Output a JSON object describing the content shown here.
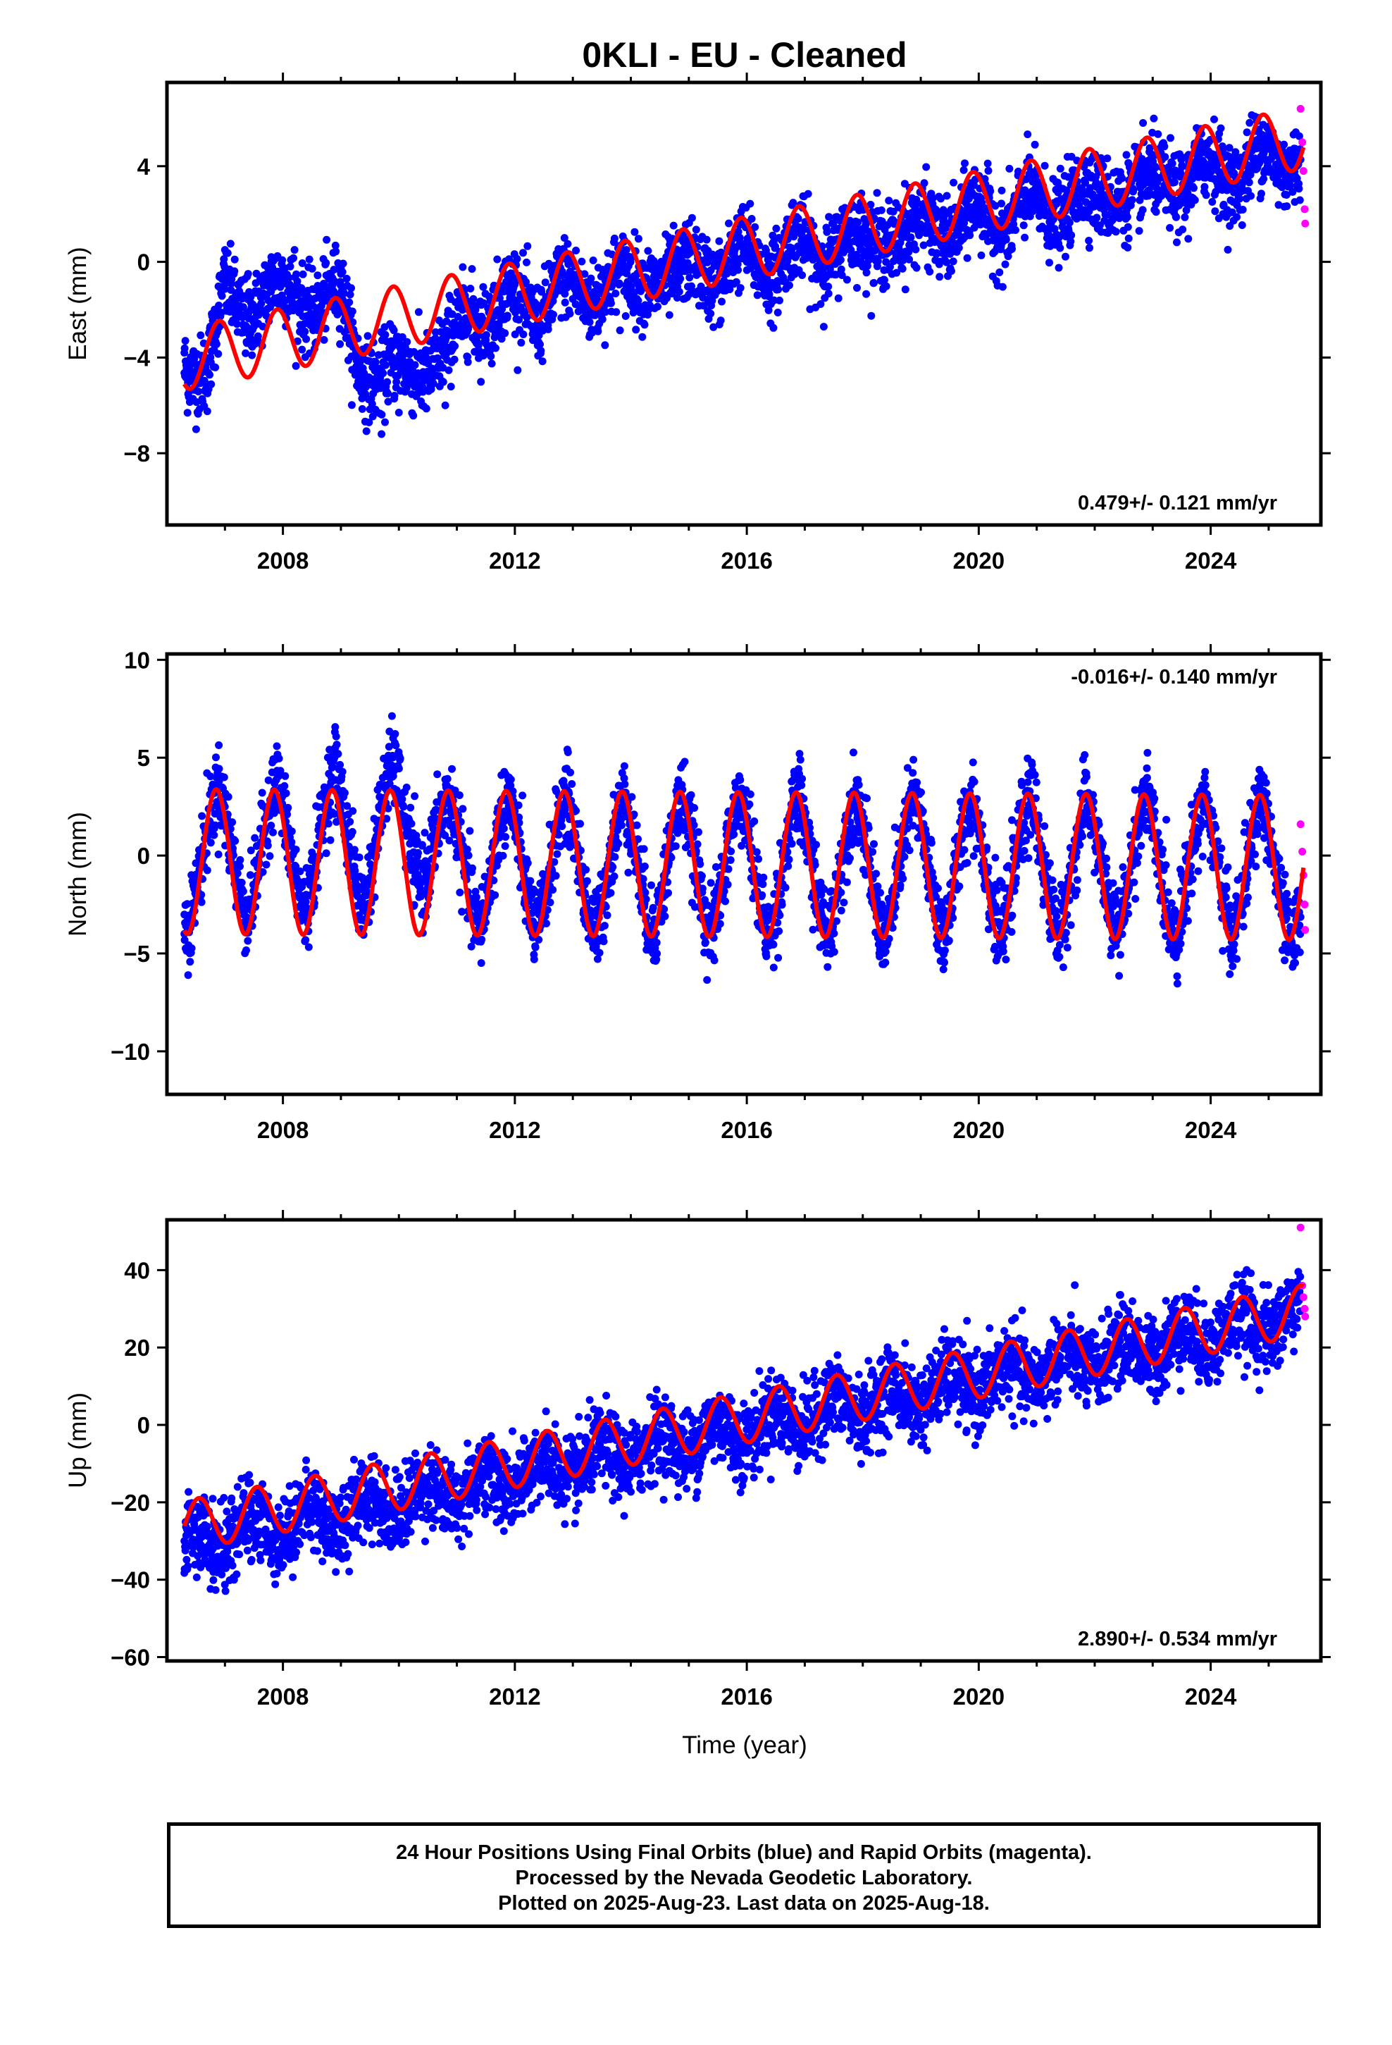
{
  "title": "0KLI  - EU - Cleaned",
  "x_axis_label": "Time (year)",
  "caption": [
    "24 Hour Positions Using Final Orbits (blue) and Rapid Orbits (magenta).",
    "Processed by the Nevada Geodetic Laboratory.",
    "Plotted on 2025-Aug-23. Last data on 2025-Aug-18."
  ],
  "colors": {
    "final": "#0000ff",
    "rapid": "#ff00ff",
    "model": "#ff0000",
    "frame": "#000000"
  },
  "chart_data": [
    {
      "type": "scatter",
      "ylabel": "East (mm)",
      "rate_label": "0.479+/- 0.121 mm/yr",
      "xlim": [
        2006.0,
        2025.9
      ],
      "ylim": [
        -11.0,
        7.5
      ],
      "xticks": [
        2008,
        2012,
        2016,
        2020,
        2024
      ],
      "yticks": [
        4,
        0,
        -4,
        -8
      ],
      "ytick_labels": [
        "4",
        "0",
        "−4",
        "−8"
      ],
      "final_orbits": [
        [
          2006.3,
          -3.8
        ],
        [
          2006.7,
          -5.5
        ],
        [
          2007.0,
          0.5
        ],
        [
          2007.4,
          -0.5
        ],
        [
          2007.8,
          0.2
        ],
        [
          2008.2,
          0.5
        ],
        [
          2008.6,
          -1.0
        ],
        [
          2009.0,
          -0.5
        ],
        [
          2009.3,
          -5.0
        ],
        [
          2009.7,
          -7.2
        ],
        [
          2010.0,
          -6.3
        ],
        [
          2010.4,
          -6.0
        ],
        [
          2010.8,
          -6.0
        ],
        [
          2011.2,
          -2.0
        ],
        [
          2011.6,
          -2.8
        ],
        [
          2012.0,
          -1.6
        ],
        [
          2012.4,
          -2.6
        ],
        [
          2012.8,
          -1.2
        ],
        [
          2013.2,
          -2.0
        ],
        [
          2013.6,
          -0.8
        ],
        [
          2014.0,
          -1.8
        ],
        [
          2014.4,
          -0.6
        ],
        [
          2014.8,
          -1.5
        ],
        [
          2015.2,
          -0.3
        ],
        [
          2015.6,
          -1.2
        ],
        [
          2016.0,
          0.0
        ],
        [
          2016.4,
          -0.9
        ],
        [
          2016.8,
          0.3
        ],
        [
          2017.2,
          -0.6
        ],
        [
          2017.6,
          0.6
        ],
        [
          2018.0,
          -0.2
        ],
        [
          2018.4,
          1.0
        ],
        [
          2018.8,
          0.1
        ],
        [
          2019.2,
          1.3
        ],
        [
          2019.6,
          0.5
        ],
        [
          2020.0,
          1.6
        ],
        [
          2020.4,
          0.8
        ],
        [
          2020.8,
          1.9
        ],
        [
          2021.2,
          1.2
        ],
        [
          2021.6,
          2.3
        ],
        [
          2022.0,
          1.6
        ],
        [
          2022.4,
          2.7
        ],
        [
          2022.8,
          2.0
        ],
        [
          2023.2,
          3.2
        ],
        [
          2023.6,
          2.4
        ],
        [
          2024.0,
          3.5
        ],
        [
          2024.4,
          2.9
        ],
        [
          2024.8,
          3.9
        ],
        [
          2025.2,
          3.2
        ],
        [
          2025.5,
          4.2
        ]
      ],
      "rapid_orbits": [
        [
          2025.55,
          6.4
        ],
        [
          2025.58,
          5.0
        ],
        [
          2025.6,
          3.8
        ],
        [
          2025.62,
          2.2
        ],
        [
          2025.63,
          1.6
        ]
      ],
      "model": {
        "intercept_2006": -4.2,
        "rate_mm_per_yr": 0.479,
        "annual_amplitude": 1.3,
        "annual_phase_year": 2006.9,
        "segments_until": 2011.0,
        "early_offset": 0.0
      }
    },
    {
      "type": "scatter",
      "ylabel": "North (mm)",
      "rate_label": "-0.016+/- 0.140 mm/yr",
      "xlim": [
        2006.0,
        2025.9
      ],
      "ylim": [
        -12.2,
        10.3
      ],
      "xticks": [
        2008,
        2012,
        2016,
        2020,
        2024
      ],
      "yticks": [
        10,
        5,
        0,
        -5,
        -10
      ],
      "ytick_labels": [
        "10",
        "5",
        "0",
        "−5",
        "−10"
      ],
      "final_orbits": [
        [
          2006.3,
          -4.0
        ],
        [
          2006.9,
          3.8
        ],
        [
          2007.4,
          -2.5
        ],
        [
          2007.9,
          4.2
        ],
        [
          2008.4,
          -2.0
        ],
        [
          2008.9,
          5.5
        ],
        [
          2009.4,
          -1.5
        ],
        [
          2009.9,
          6.0
        ],
        [
          2010.4,
          0.5
        ],
        [
          2010.9,
          2.5
        ],
        [
          2011.4,
          -3.5
        ],
        [
          2011.9,
          3.0
        ],
        [
          2012.4,
          -3.8
        ],
        [
          2012.9,
          3.0
        ],
        [
          2013.4,
          -4.2
        ],
        [
          2013.9,
          2.8
        ],
        [
          2014.4,
          -4.0
        ],
        [
          2014.9,
          2.9
        ],
        [
          2015.4,
          -4.0
        ],
        [
          2015.9,
          3.0
        ],
        [
          2016.4,
          -4.3
        ],
        [
          2016.9,
          2.9
        ],
        [
          2017.4,
          -4.1
        ],
        [
          2017.9,
          2.8
        ],
        [
          2018.4,
          -4.5
        ],
        [
          2018.9,
          3.0
        ],
        [
          2019.4,
          -4.0
        ],
        [
          2019.9,
          2.8
        ],
        [
          2020.4,
          -4.0
        ],
        [
          2020.9,
          2.9
        ],
        [
          2021.4,
          -4.1
        ],
        [
          2021.9,
          2.8
        ],
        [
          2022.4,
          -4.0
        ],
        [
          2022.9,
          3.0
        ],
        [
          2023.4,
          -4.2
        ],
        [
          2023.9,
          3.0
        ],
        [
          2024.4,
          -4.0
        ],
        [
          2024.9,
          2.8
        ],
        [
          2025.4,
          -4.5
        ]
      ],
      "rapid_orbits": [
        [
          2025.55,
          1.6
        ],
        [
          2025.58,
          0.2
        ],
        [
          2025.6,
          -1.0
        ],
        [
          2025.62,
          -2.5
        ],
        [
          2025.63,
          -3.8
        ]
      ],
      "model": {
        "intercept_2006": -0.3,
        "rate_mm_per_yr": -0.016,
        "annual_amplitude": 3.7,
        "annual_phase_year": 2006.85,
        "segments_until": 2011.0,
        "early_offset": 0.0
      }
    },
    {
      "type": "scatter",
      "ylabel": "Up (mm)",
      "rate_label": "2.890+/- 0.534 mm/yr",
      "xlim": [
        2006.0,
        2025.9
      ],
      "ylim": [
        -61.0,
        53.0
      ],
      "xticks": [
        2008,
        2012,
        2016,
        2020,
        2024
      ],
      "yticks": [
        40,
        20,
        0,
        -20,
        -40,
        -60
      ],
      "ytick_labels": [
        "40",
        "20",
        "0",
        "−20",
        "−40",
        "−60"
      ],
      "final_orbits": [
        [
          2006.3,
          -30.0
        ],
        [
          2006.8,
          -38.0
        ],
        [
          2007.3,
          -26.0
        ],
        [
          2007.8,
          -35.0
        ],
        [
          2008.3,
          -24.0
        ],
        [
          2008.8,
          -32.0
        ],
        [
          2009.3,
          -21.0
        ],
        [
          2009.8,
          -28.0
        ],
        [
          2010.3,
          -18.0
        ],
        [
          2010.8,
          -25.0
        ],
        [
          2011.3,
          -15.0
        ],
        [
          2011.8,
          -22.0
        ],
        [
          2012.3,
          -12.0
        ],
        [
          2012.8,
          -18.0
        ],
        [
          2013.3,
          -9.0
        ],
        [
          2013.8,
          -14.0
        ],
        [
          2014.3,
          -5.0
        ],
        [
          2014.8,
          -10.0
        ],
        [
          2015.3,
          -2.0
        ],
        [
          2015.8,
          -8.0
        ],
        [
          2016.3,
          1.0
        ],
        [
          2016.8,
          -4.0
        ],
        [
          2017.3,
          4.0
        ],
        [
          2017.8,
          0.0
        ],
        [
          2018.3,
          7.0
        ],
        [
          2018.8,
          2.0
        ],
        [
          2019.3,
          10.0
        ],
        [
          2019.8,
          5.0
        ],
        [
          2020.3,
          13.0
        ],
        [
          2020.8,
          8.0
        ],
        [
          2021.3,
          16.0
        ],
        [
          2021.8,
          12.0
        ],
        [
          2022.3,
          19.0
        ],
        [
          2022.8,
          15.0
        ],
        [
          2023.3,
          22.0
        ],
        [
          2023.8,
          18.0
        ],
        [
          2024.3,
          26.0
        ],
        [
          2024.8,
          22.0
        ],
        [
          2025.3,
          29.0
        ]
      ],
      "rapid_orbits": [
        [
          2025.55,
          51.0
        ],
        [
          2025.58,
          36.0
        ],
        [
          2025.6,
          33.0
        ],
        [
          2025.62,
          30.0
        ],
        [
          2025.63,
          28.0
        ]
      ],
      "model": {
        "intercept_2006": -27.0,
        "rate_mm_per_yr": 2.89,
        "annual_amplitude": 6.5,
        "annual_phase_year": 2006.55,
        "segments_until": 2006.0,
        "early_offset": 0.0
      }
    }
  ]
}
